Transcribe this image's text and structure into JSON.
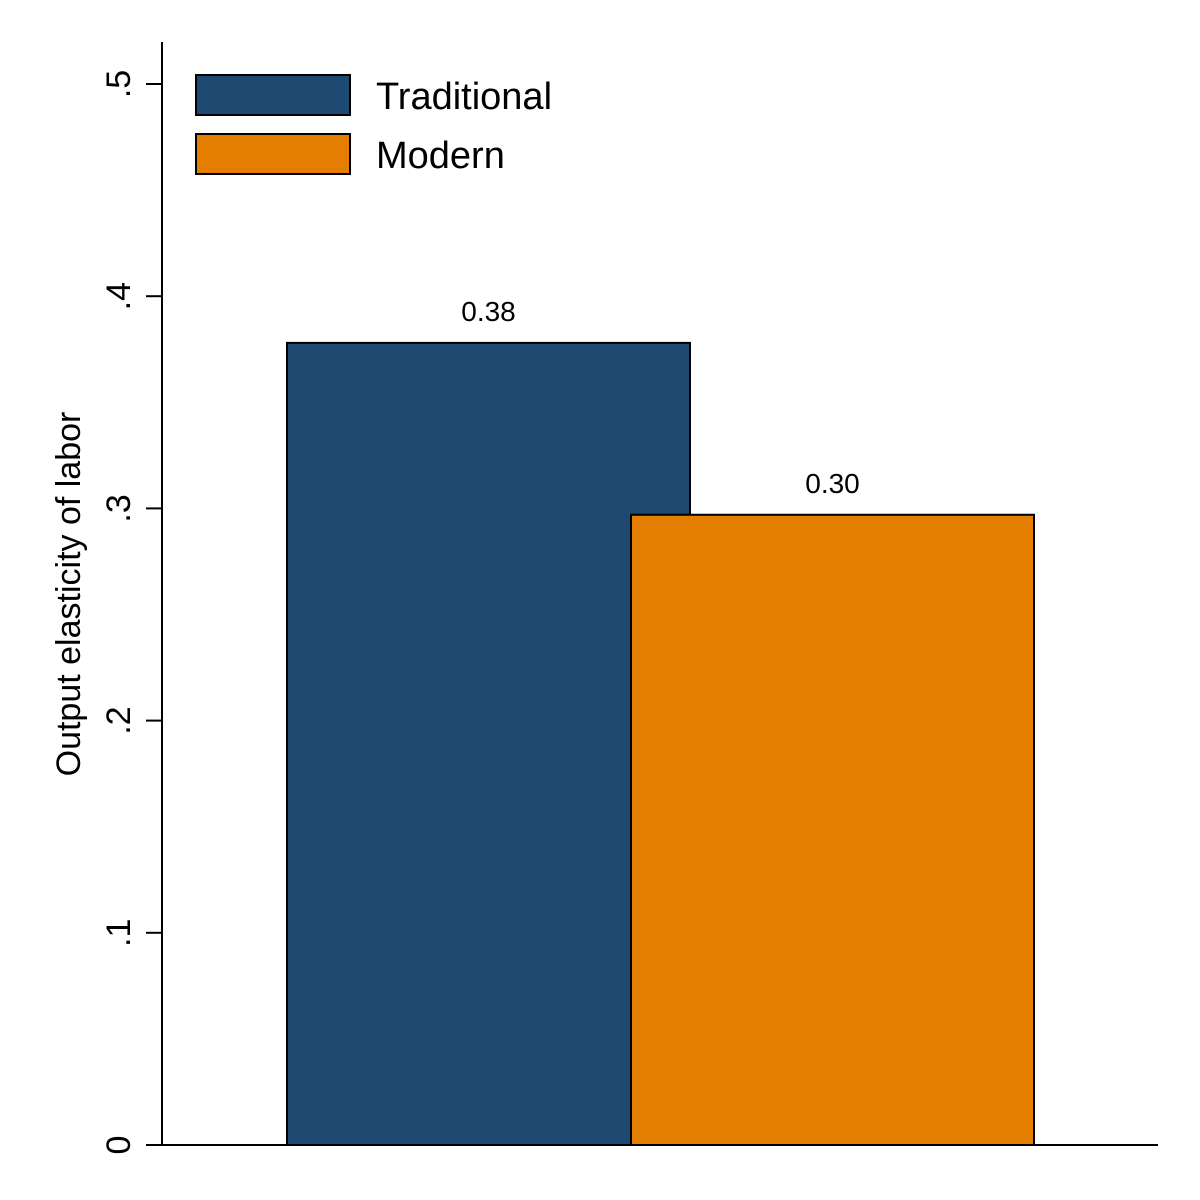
{
  "chart_data": {
    "type": "bar",
    "ylabel": "Output elasticity of labor",
    "ylim": [
      0,
      0.52
    ],
    "yticks": [
      {
        "value": 0,
        "label": "0"
      },
      {
        "value": 0.1,
        "label": ".1"
      },
      {
        "value": 0.2,
        "label": ".2"
      },
      {
        "value": 0.3,
        "label": ".3"
      },
      {
        "value": 0.4,
        "label": ".4"
      },
      {
        "value": 0.5,
        "label": ".5"
      }
    ],
    "grid": false,
    "legend_position": "top-left",
    "series": [
      {
        "name": "Traditional",
        "value": 0.378,
        "label": "0.38",
        "color": "#1e4a72"
      },
      {
        "name": "Modern",
        "value": 0.297,
        "label": "0.30",
        "color": "#e37e00"
      }
    ]
  }
}
